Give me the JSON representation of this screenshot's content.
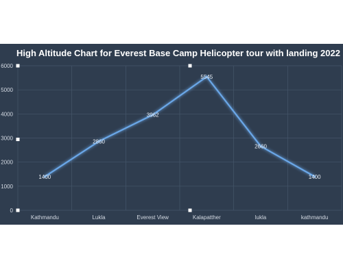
{
  "colors": {
    "background": "#2f3d4f",
    "line": "#6aa7e8",
    "grid": "#46566a",
    "text": "#d4dae3"
  },
  "chart_data": {
    "type": "line",
    "title": "High Altitude Chart for Everest Base Camp Helicopter tour with landing 2022",
    "xlabel": "",
    "ylabel": "",
    "categories": [
      "Kathmandu",
      "Lukla",
      "Everest View",
      "Kalapatther",
      "lukla",
      "kathmandu"
    ],
    "series": [
      {
        "values": [
          1400,
          2860,
          3962,
          5545,
          2660,
          1400
        ]
      }
    ],
    "data_labels": [
      "1400",
      "2860",
      "3962",
      "5545",
      "2660",
      "1400"
    ],
    "ylim": [
      0,
      6000
    ],
    "yticks": [
      0,
      1000,
      2000,
      3000,
      4000,
      5000,
      6000
    ],
    "grid": true,
    "legend": "none"
  }
}
